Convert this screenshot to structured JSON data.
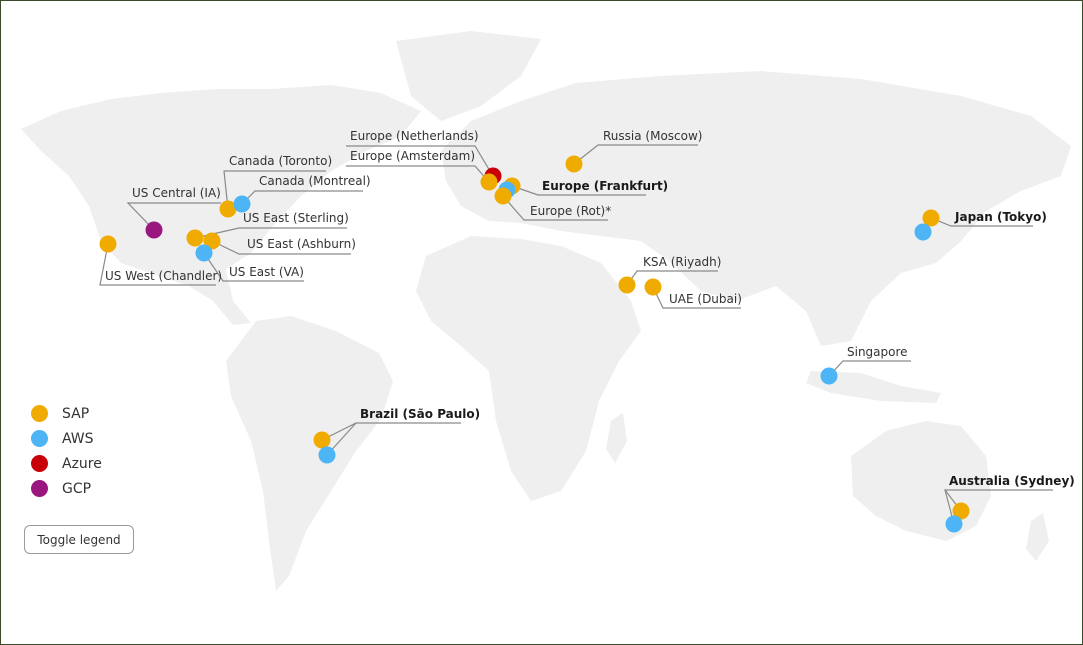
{
  "colors": {
    "SAP": "#f0ab00",
    "AWS": "#4db4f5",
    "Azure": "#c8000a",
    "GCP": "#9b1780",
    "land": "#efefef",
    "leader": "#8a8a8a"
  },
  "legend": {
    "items": [
      {
        "key": "SAP",
        "label": "SAP"
      },
      {
        "key": "AWS",
        "label": "AWS"
      },
      {
        "key": "Azure",
        "label": "Azure"
      },
      {
        "key": "GCP",
        "label": "GCP"
      }
    ],
    "toggle_label": "Toggle legend"
  },
  "locations": [
    {
      "id": "us-west-chandler",
      "label": "US West (Chandler)",
      "providers": [
        "SAP"
      ],
      "bold": false
    },
    {
      "id": "us-central-ia",
      "label": "US Central (IA)",
      "providers": [
        "GCP"
      ],
      "bold": false
    },
    {
      "id": "canada-toronto",
      "label": "Canada (Toronto)",
      "providers": [
        "SAP"
      ],
      "bold": false
    },
    {
      "id": "canada-montreal",
      "label": "Canada (Montreal)",
      "providers": [
        "AWS"
      ],
      "bold": false
    },
    {
      "id": "us-east-sterling",
      "label": "US East (Sterling)",
      "providers": [
        "SAP"
      ],
      "bold": false
    },
    {
      "id": "us-east-ashburn",
      "label": "US East (Ashburn)",
      "providers": [
        "SAP"
      ],
      "bold": false
    },
    {
      "id": "us-east-va",
      "label": "US East (VA)",
      "providers": [
        "AWS"
      ],
      "bold": false
    },
    {
      "id": "brazil-sao-paulo",
      "label": "Brazil (São Paulo)",
      "providers": [
        "SAP",
        "AWS"
      ],
      "bold": true
    },
    {
      "id": "europe-netherlands",
      "label": "Europe (Netherlands)",
      "providers": [
        "Azure"
      ],
      "bold": false
    },
    {
      "id": "europe-amsterdam",
      "label": "Europe (Amsterdam)",
      "providers": [
        "SAP"
      ],
      "bold": false
    },
    {
      "id": "europe-frankfurt",
      "label": "Europe (Frankfurt)",
      "providers": [
        "SAP",
        "AWS"
      ],
      "bold": true
    },
    {
      "id": "europe-rot",
      "label": "Europe (Rot)*",
      "providers": [
        "SAP"
      ],
      "bold": false
    },
    {
      "id": "russia-moscow",
      "label": "Russia (Moscow)",
      "providers": [
        "SAP"
      ],
      "bold": false
    },
    {
      "id": "ksa-riyadh",
      "label": "KSA (Riyadh)",
      "providers": [
        "SAP"
      ],
      "bold": false
    },
    {
      "id": "uae-dubai",
      "label": "UAE (Dubai)",
      "providers": [
        "SAP"
      ],
      "bold": false
    },
    {
      "id": "singapore",
      "label": "Singapore",
      "providers": [
        "AWS"
      ],
      "bold": false
    },
    {
      "id": "japan-tokyo",
      "label": "Japan (Tokyo)",
      "providers": [
        "SAP",
        "AWS"
      ],
      "bold": true
    },
    {
      "id": "australia-sydney",
      "label": "Australia (Sydney)",
      "providers": [
        "SAP",
        "AWS"
      ],
      "bold": true
    }
  ]
}
